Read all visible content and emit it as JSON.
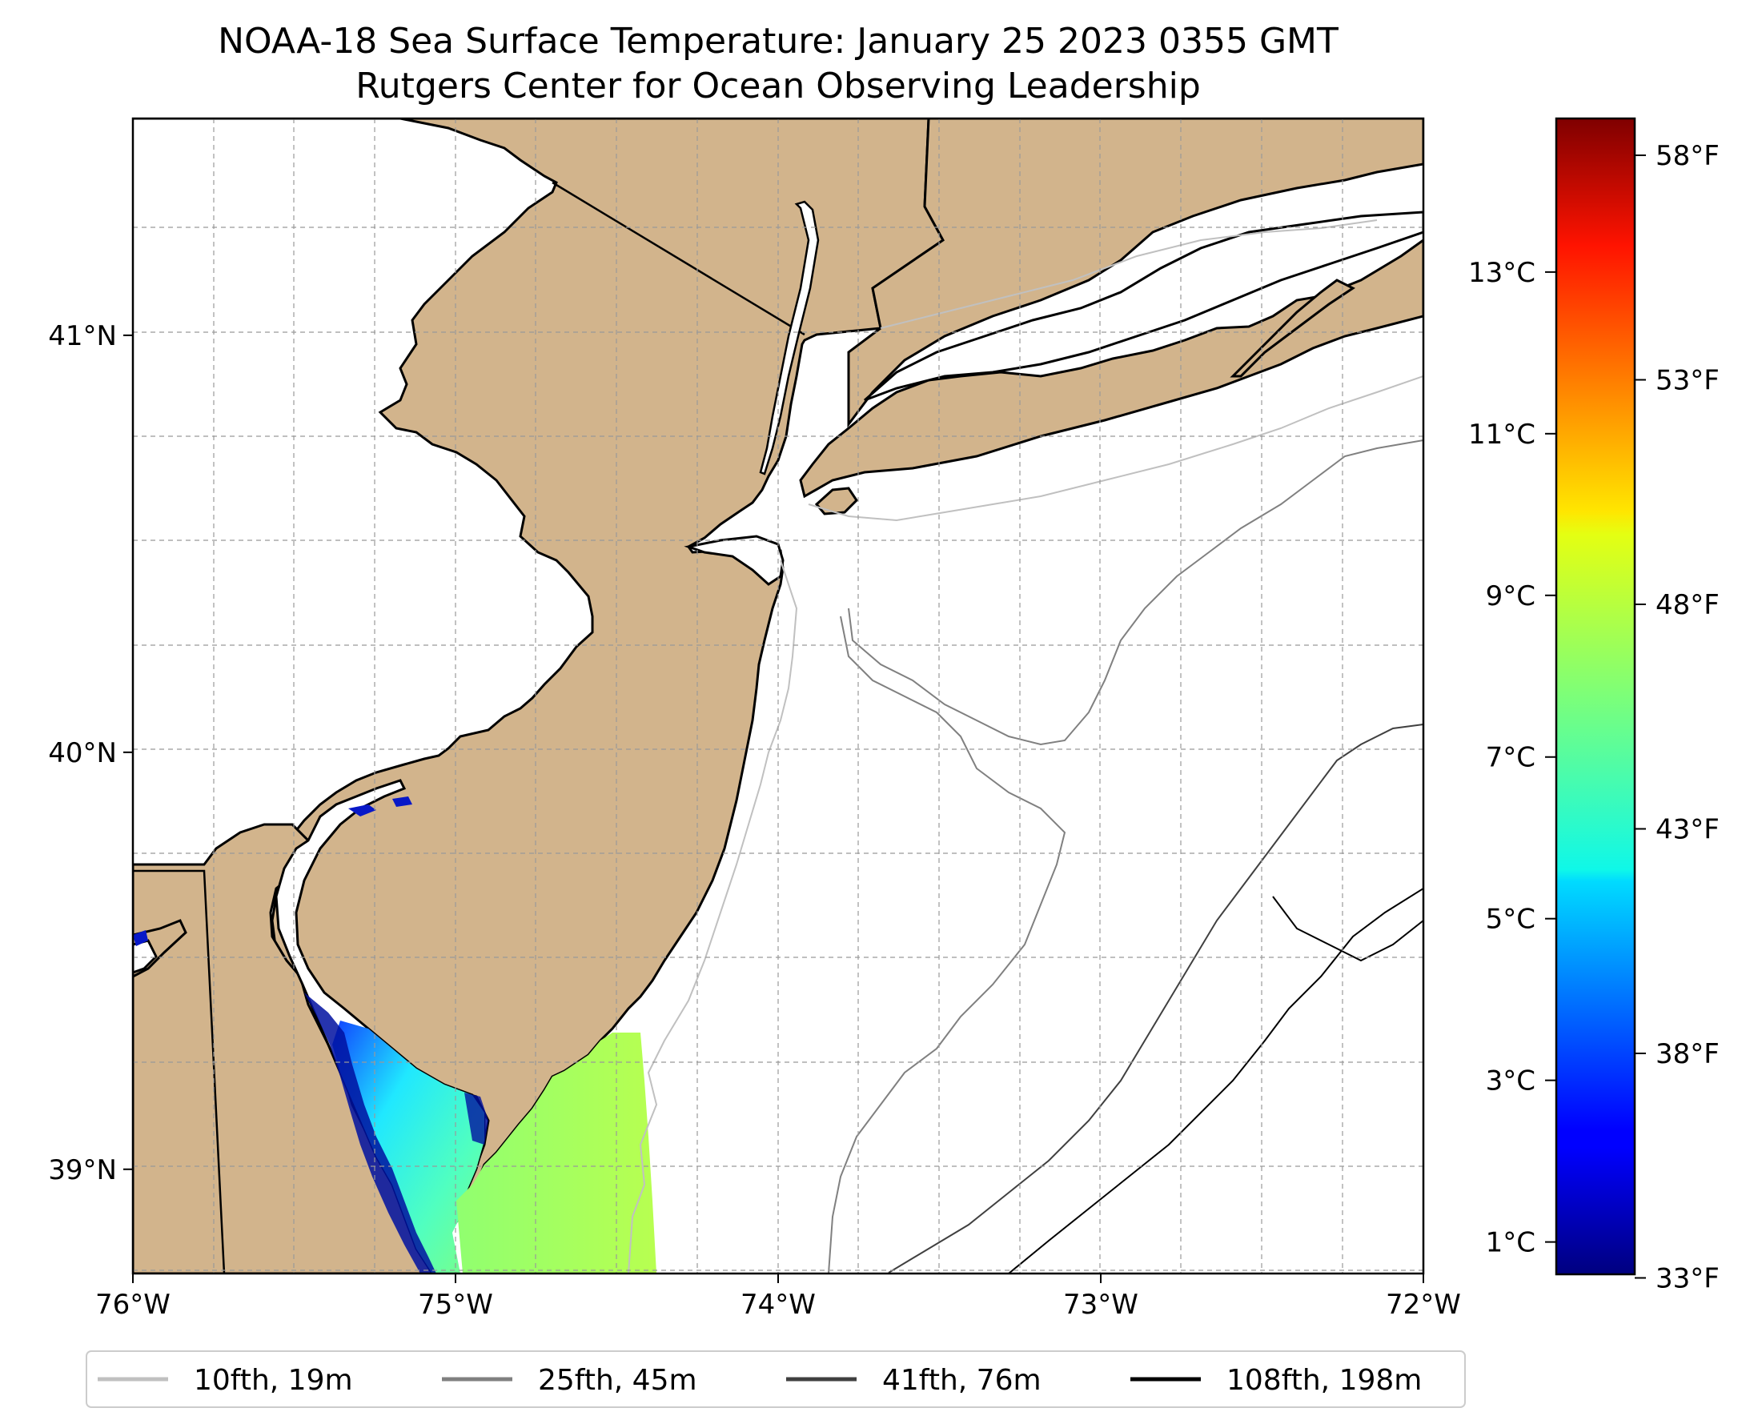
{
  "figure": {
    "title_line1": "NOAA-18 Sea Surface Temperature: January 25 2023 0355 GMT",
    "title_line2": "Rutgers Center for Ocean Observing Leadership"
  },
  "map": {
    "lon_range": [
      -76,
      -72
    ],
    "lat_range": [
      38.75,
      41.52
    ],
    "land_color": "#d2b48c",
    "ocean_color": "#ffffff",
    "grid": "dashed",
    "lon_ticks": [
      {
        "value": -76,
        "label": "76°W"
      },
      {
        "value": -75,
        "label": "75°W"
      },
      {
        "value": -74,
        "label": "74°W"
      },
      {
        "value": -73,
        "label": "73°W"
      },
      {
        "value": -72,
        "label": "72°W"
      }
    ],
    "lat_ticks": [
      {
        "value": 41,
        "label": "41°N"
      },
      {
        "value": 40,
        "label": "40°N"
      },
      {
        "value": 39,
        "label": "39°N"
      }
    ]
  },
  "colorbar": {
    "colormap": "jet",
    "range_c": [
      0.6,
      14.9
    ],
    "celsius_ticks": [
      {
        "value": 1,
        "label": "1°C"
      },
      {
        "value": 3,
        "label": "3°C"
      },
      {
        "value": 5,
        "label": "5°C"
      },
      {
        "value": 7,
        "label": "7°C"
      },
      {
        "value": 9,
        "label": "9°C"
      },
      {
        "value": 11,
        "label": "11°C"
      },
      {
        "value": 13,
        "label": "13°C"
      }
    ],
    "fahrenheit_ticks": [
      {
        "value": 33,
        "label": "33°F"
      },
      {
        "value": 38,
        "label": "38°F"
      },
      {
        "value": 43,
        "label": "43°F"
      },
      {
        "value": 48,
        "label": "48°F"
      },
      {
        "value": 53,
        "label": "53°F"
      },
      {
        "value": 58,
        "label": "58°F"
      }
    ]
  },
  "legend": {
    "items": [
      {
        "label": "10fth, 19m",
        "color": "#c0c0c0"
      },
      {
        "label": "25fth, 45m",
        "color": "#808080"
      },
      {
        "label": "41fth, 76m",
        "color": "#404040"
      },
      {
        "label": "108fth, 198m",
        "color": "#000000"
      }
    ]
  }
}
